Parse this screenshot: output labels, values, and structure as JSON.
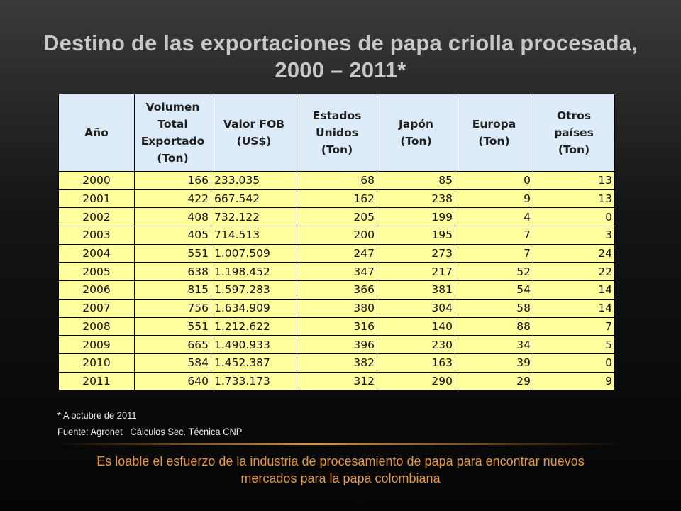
{
  "slide": {
    "title_line1": "Destino de las exportaciones de papa criolla procesada,",
    "title_line2": "2000 – 2011*"
  },
  "table": {
    "headers": [
      [
        "Año"
      ],
      [
        "Volumen",
        "Total",
        "Exportado",
        "(Ton)"
      ],
      [
        "Valor FOB",
        "(US$)"
      ],
      [
        "Estados",
        "Unidos",
        "(Ton)"
      ],
      [
        "Japón",
        "(Ton)"
      ],
      [
        "Europa",
        "(Ton)"
      ],
      [
        "Otros",
        "países",
        "(Ton)"
      ]
    ],
    "rows": [
      [
        "2000",
        "166",
        "233.035",
        "68",
        "85",
        "0",
        "13"
      ],
      [
        "2001",
        "422",
        "667.542",
        "162",
        "238",
        "9",
        "13"
      ],
      [
        "2002",
        "408",
        "732.122",
        "205",
        "199",
        "4",
        "0"
      ],
      [
        "2003",
        "405",
        "714.513",
        "200",
        "195",
        "7",
        "3"
      ],
      [
        "2004",
        "551",
        "1.007.509",
        "247",
        "273",
        "7",
        "24"
      ],
      [
        "2005",
        "638",
        "1.198.452",
        "347",
        "217",
        "52",
        "22"
      ],
      [
        "2006",
        "815",
        "1.597.283",
        "366",
        "381",
        "54",
        "14"
      ],
      [
        "2007",
        "756",
        "1.634.909",
        "380",
        "304",
        "58",
        "14"
      ],
      [
        "2008",
        "551",
        "1.212.622",
        "316",
        "140",
        "88",
        "7"
      ],
      [
        "2009",
        "665",
        "1.490.933",
        "396",
        "230",
        "34",
        "5"
      ],
      [
        "2010",
        "584",
        "1.452.387",
        "382",
        "163",
        "39",
        "0"
      ],
      [
        "2011",
        "640",
        "1.733.173",
        "312",
        "290",
        "29",
        "9"
      ]
    ]
  },
  "notes": {
    "footnote": "* A octubre de 2011",
    "source": "Fuente: Agronet   Cálculos Sec. Técnica CNP"
  },
  "footer": {
    "line1": "Es loable el esfuerzo de la industria de procesamiento de papa para encontrar nuevos",
    "line2": "mercados para la papa colombiana"
  },
  "colors": {
    "title": "#c7c7c7",
    "header_bg": "#dcebf7",
    "cell_bg": "#ffff9e",
    "footer_text": "#e3973d"
  }
}
